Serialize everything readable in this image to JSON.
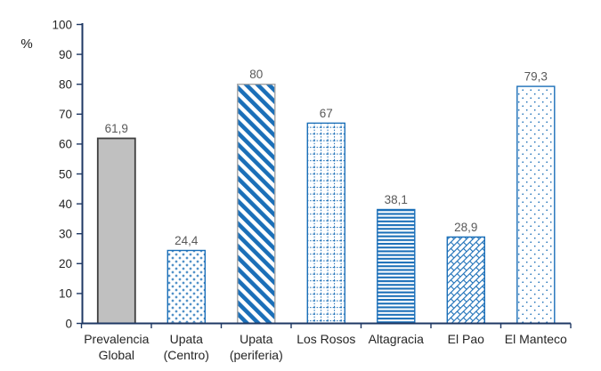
{
  "chart_data": {
    "type": "bar",
    "title": "",
    "xlabel": "",
    "ylabel": "%",
    "ylim": [
      0,
      100
    ],
    "yticks": [
      0,
      10,
      20,
      30,
      40,
      50,
      60,
      70,
      80,
      90,
      100
    ],
    "grid": "off",
    "legend": "none",
    "categories": [
      "Prevalencia Global",
      "Upata (Centro)",
      "Upata (periferia)",
      "Los Rosos",
      "Altagracia",
      "El Pao",
      "El Manteco"
    ],
    "category_lines": [
      [
        "Prevalencia",
        "Global"
      ],
      [
        "Upata",
        "(Centro)"
      ],
      [
        "Upata",
        "(periferia)"
      ],
      [
        "Los Rosos"
      ],
      [
        "Altagracia"
      ],
      [
        "El Pao"
      ],
      [
        "El Manteco"
      ]
    ],
    "values": [
      61.9,
      24.4,
      80,
      67,
      38.1,
      28.9,
      79.3
    ],
    "value_labels": [
      "61,9",
      "24,4",
      "80",
      "67",
      "38,1",
      "28,9",
      "79,3"
    ],
    "bar_styles": [
      {
        "pattern": "solid-gray",
        "stroke": "#3f3f3f"
      },
      {
        "pattern": "dotted-diamond",
        "stroke": "#1b6fb8"
      },
      {
        "pattern": "diagonal-stripe",
        "stroke": "#a6a6a6"
      },
      {
        "pattern": "dashed-grid",
        "stroke": "#1b6fb8"
      },
      {
        "pattern": "horizontal-stripe",
        "stroke": "#1b6fb8"
      },
      {
        "pattern": "diagonal-weave",
        "stroke": "#1b6fb8"
      },
      {
        "pattern": "fine-dot",
        "stroke": "#1b6fb8"
      }
    ],
    "colors": {
      "pattern_blue": "#1b6fb8",
      "solid_gray_fill": "#c0c0c0",
      "solid_gray_border": "#3f3f3f",
      "stripe_bar_border": "#a6a6a6",
      "axis": "#1f3864",
      "value_label": "#595959",
      "axis_label": "#262626",
      "background": "#ffffff"
    }
  }
}
